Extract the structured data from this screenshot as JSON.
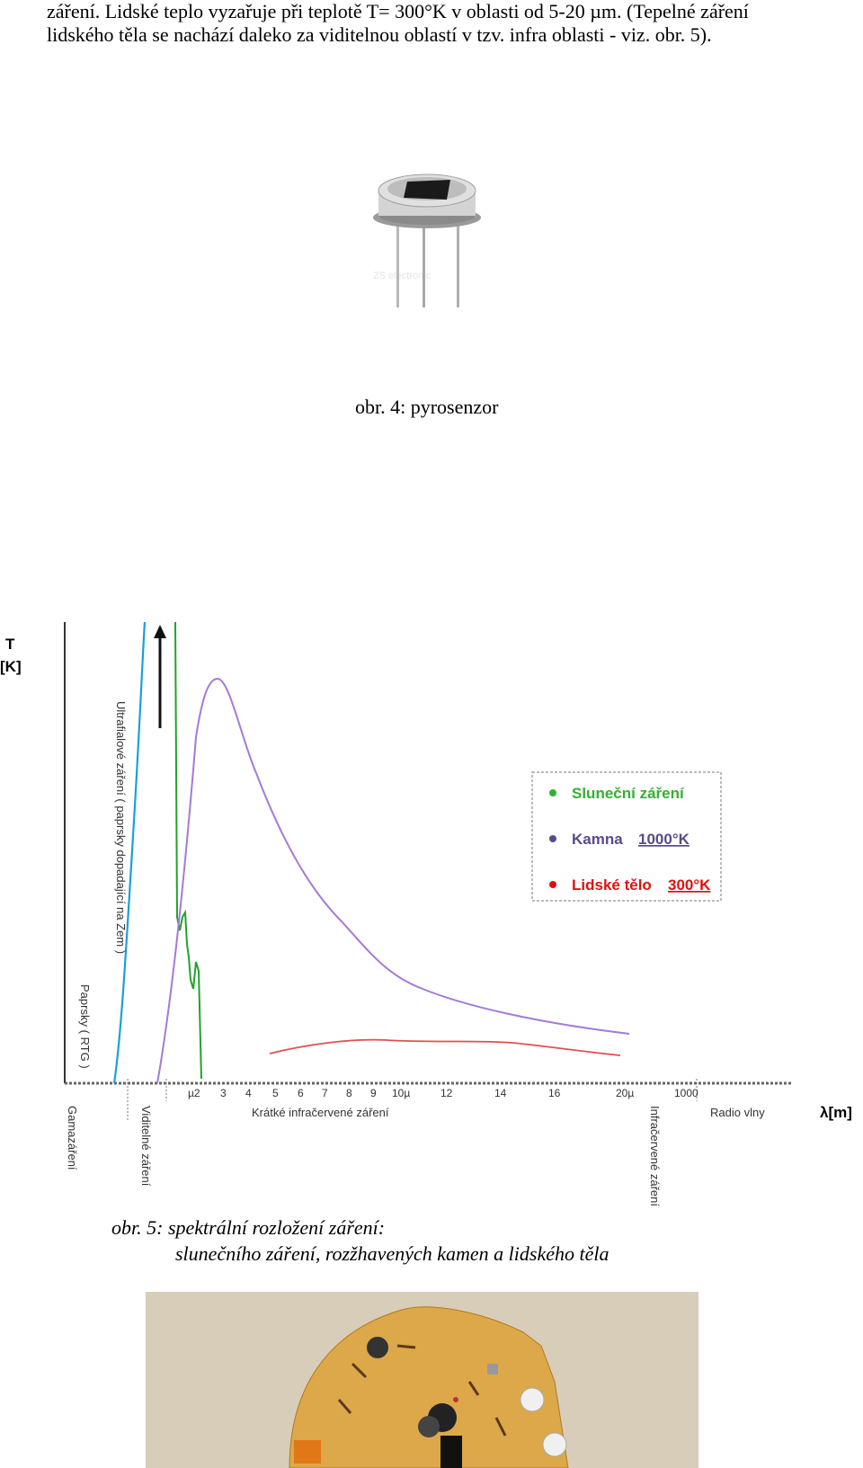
{
  "intro": {
    "line1": "záření. Lidské teplo vyzařuje při teplotě T= 300°K v oblasti od 5-20 µm. (Tepelné záření",
    "line2": "lidského těla se nachází daleko za viditelnou oblastí v tzv. infra oblasti - viz. obr. 5)."
  },
  "figure4": {
    "caption": "obr. 4: pyrosenzor",
    "watermark": "ZS electronic"
  },
  "chart_data": {
    "type": "line",
    "ylabel_top": "T",
    "ylabel_bottom": "[K]",
    "xlabel": "λ[m]",
    "x_ticks": [
      "µ2",
      "3",
      "4",
      "5",
      "6",
      "7",
      "8",
      "9",
      "10µ",
      "12",
      "14",
      "16",
      "20µ",
      "1000"
    ],
    "region_labels": {
      "gamma": "Gamazáření",
      "xray": "Paprsky ( RTG )",
      "uv": "Ultrafialové záření ( paprsky dopadající na Zem )",
      "visible": "Viditelné záření",
      "short_ir": "Krátké infračervené záření",
      "infrared": "Infračervené záření",
      "radio": "Radio vlny"
    },
    "legend": [
      {
        "label": "Sluneční záření",
        "color": "#33b033",
        "suffix": ""
      },
      {
        "label": "Kamna",
        "color": "#5a4a8a",
        "suffix": "1000°K"
      },
      {
        "label": "Lidské tělo",
        "color": "#e01010",
        "suffix": "300°K"
      }
    ],
    "series_colors": {
      "sun": "#22a22a",
      "uv": "#1aa0d8",
      "stove": "#a47ad6",
      "body": "#e05050"
    }
  },
  "figure5": {
    "caption_line1": "obr. 5: spektrální rozložení záření:",
    "caption_line2": "slunečního záření, rozžhavených kamen a lidského těla"
  }
}
